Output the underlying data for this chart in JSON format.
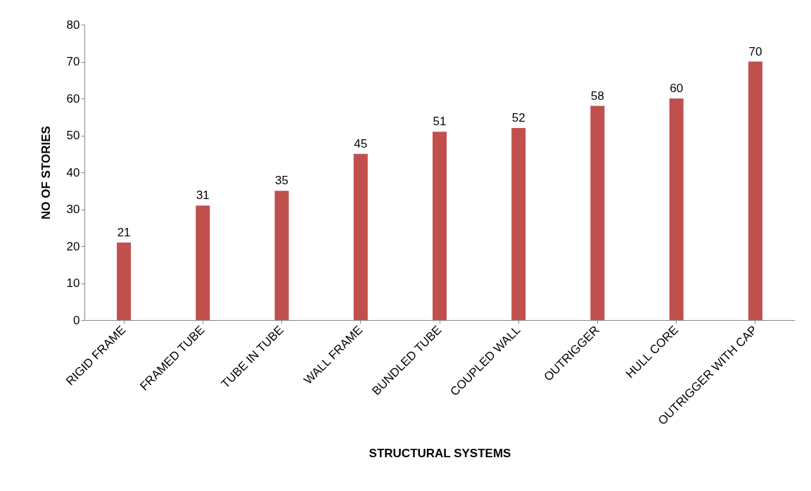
{
  "chart_data": {
    "type": "bar",
    "xlabel": "STRUCTURAL SYSTEMS",
    "ylabel": "NO OF STORIES",
    "categories": [
      "RIGID FRAME",
      "FRAMED TUBE",
      "TUBE IN TUBE",
      "WALL FRAME",
      "BUNDLED TUBE",
      "COUPLED WALL",
      "OUTRIGGER",
      "HULL CORE",
      "OUTRIGGER WITH CAP"
    ],
    "values": [
      21,
      31,
      35,
      45,
      51,
      52,
      58,
      60,
      70
    ],
    "color": "#c0504d",
    "ylim": [
      0,
      80
    ],
    "yticks": [
      0,
      10,
      20,
      30,
      40,
      50,
      60,
      70,
      80
    ],
    "grid": false,
    "data_labels": true
  }
}
